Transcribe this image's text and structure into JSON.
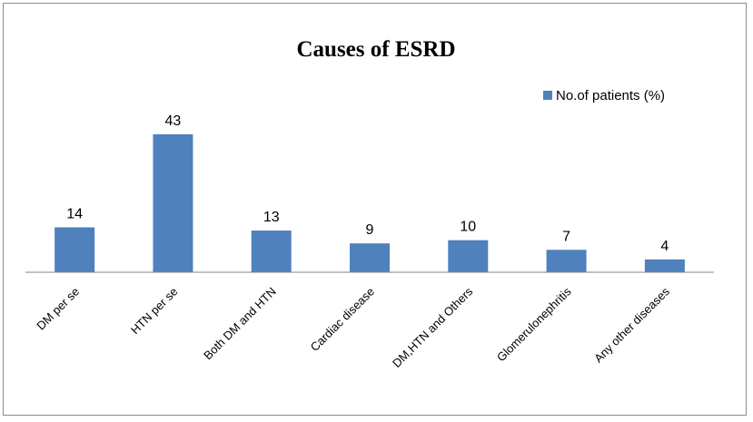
{
  "chart_data": {
    "type": "bar",
    "title": "Causes of ESRD",
    "xlabel": "",
    "ylabel": "",
    "categories": [
      "DM per se",
      "HTN per se",
      "Both DM and HTN",
      "Cardiac disease",
      "DM,HTN and Others",
      "Glomerulonephritis",
      "Any other diseases"
    ],
    "series": [
      {
        "name": "No.of patients (%)",
        "values": [
          14,
          43,
          13,
          9,
          10,
          7,
          4
        ],
        "color": "#4f81bd"
      }
    ],
    "ylim": [
      0,
      50
    ],
    "grid": false,
    "legend_position": "top-right",
    "data_labels": true
  }
}
